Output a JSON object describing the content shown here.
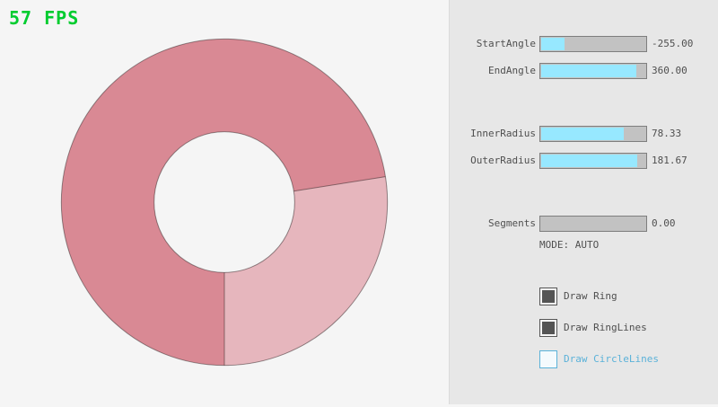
{
  "fps_label": "57 FPS",
  "colors": {
    "fps_green": "#00cc2f",
    "panel_bg": "#e7e7e7",
    "panel_line": "#dadada",
    "canvas_bg": "#f5f5f5",
    "text": "#4f4f4f",
    "accent": "#97e8ff",
    "track_bg": "#c2c2c2",
    "track_border": "#7e7e7e",
    "check_dark": "#545454",
    "blue": "#5bb2d9"
  },
  "ring": {
    "dark_color": "#d98994",
    "light_color": "#e6b6bd",
    "line_color": "#00000066"
  },
  "panel": {
    "sliders": [
      {
        "label": "StartAngle",
        "value": "-255.00",
        "fill_pct": 21.7
      },
      {
        "label": "EndAngle",
        "value": "360.00",
        "fill_pct": 90
      },
      {
        "label": "InnerRadius",
        "value": "78.33",
        "fill_pct": 78.3
      },
      {
        "label": "OuterRadius",
        "value": "181.67",
        "fill_pct": 90.8
      },
      {
        "label": "Segments",
        "value": "0.00",
        "fill_pct": 0
      }
    ],
    "mode_text": "MODE: AUTO",
    "checkboxes": [
      {
        "label": "Draw Ring",
        "state": "checked"
      },
      {
        "label": "Draw RingLines",
        "state": "checked"
      },
      {
        "label": "Draw CircleLines",
        "state": "unchecked"
      }
    ]
  }
}
